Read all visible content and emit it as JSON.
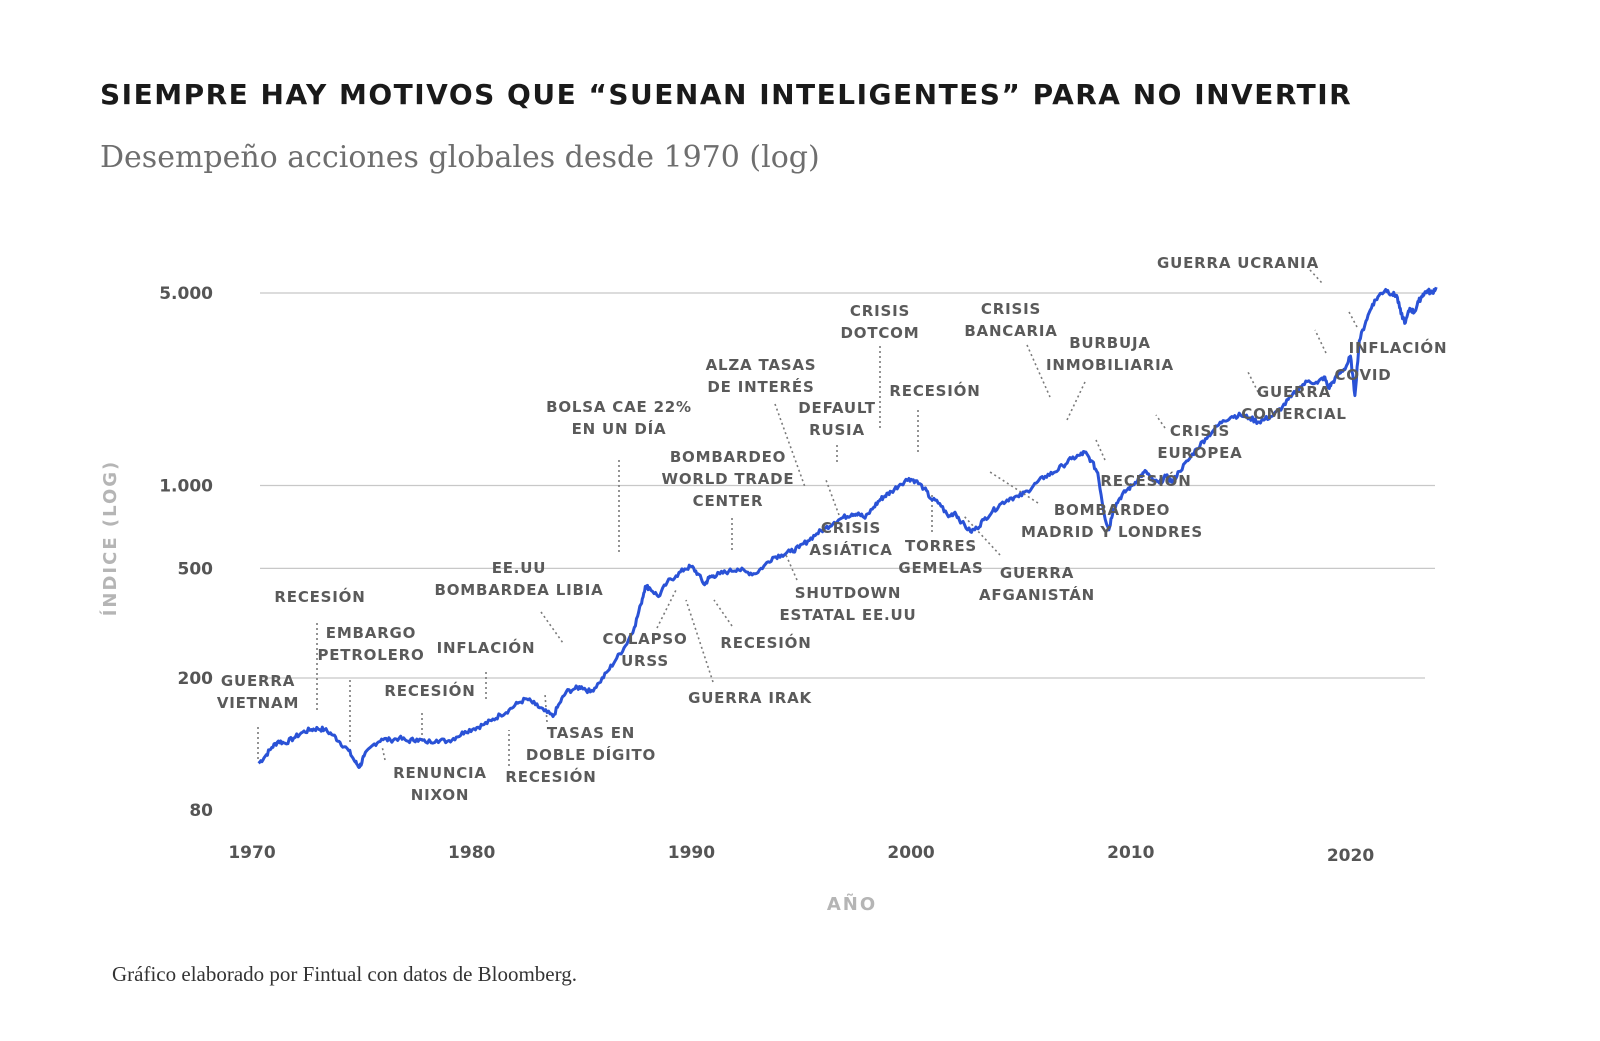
{
  "title": "SIEMPRE HAY MOTIVOS QUE “SUENAN INTELIGENTES” PARA NO INVERTIR",
  "subtitle": "Desempeño acciones globales desde 1970 (log)",
  "source": "Gráfico elaborado por Fintual con datos de Bloomberg.",
  "colors": {
    "line": "#2a52d6",
    "grid": "#c8c8c8",
    "text": "#555555"
  },
  "chart_data": {
    "type": "line",
    "title": "Desempeño acciones globales desde 1970 (log)",
    "xlabel": "AÑO",
    "ylabel": "ÍNDICE (LOG)",
    "yscale": "log",
    "ylim": [
      80,
      5500
    ],
    "xlim": [
      1970,
      2024
    ],
    "grid": true,
    "yticks": [
      {
        "value": 80,
        "label": "80"
      },
      {
        "value": 200,
        "label": "200"
      },
      {
        "value": 500,
        "label": "500"
      },
      {
        "value": 1000,
        "label": "1.000"
      },
      {
        "value": 5000,
        "label": "5.000"
      }
    ],
    "xticks": [
      {
        "value": 1970,
        "label": "1970"
      },
      {
        "value": 1980,
        "label": "1980"
      },
      {
        "value": 1990,
        "label": "1990"
      },
      {
        "value": 2000,
        "label": "2000"
      },
      {
        "value": 2010,
        "label": "2010"
      },
      {
        "value": 2020,
        "label": "2020"
      }
    ],
    "series": [
      {
        "x": [
          1970.3,
          1970.6,
          1970.9,
          1971.2,
          1971.5,
          1971.9,
          1972.3,
          1972.7,
          1973.0,
          1973.3,
          1973.7,
          1974.0,
          1974.4,
          1974.7,
          1974.9,
          1975.1,
          1975.5,
          1975.9,
          1976.3,
          1976.7,
          1977.1,
          1977.5,
          1977.9,
          1978.4,
          1978.9,
          1979.3,
          1979.7,
          1980.1,
          1980.5,
          1980.9,
          1981.3,
          1981.7,
          1982.1,
          1982.5,
          1982.9,
          1983.3,
          1983.7,
          1984.0,
          1984.3,
          1984.7,
          1985.0,
          1985.4,
          1985.8,
          1986.2,
          1986.6,
          1987.0,
          1987.4,
          1987.7,
          1987.9,
          1988.1,
          1988.5,
          1988.9,
          1989.3,
          1989.7,
          1990.0,
          1990.3,
          1990.6,
          1990.8,
          1991.0,
          1991.3,
          1991.7,
          1992.1,
          1992.5,
          1992.9,
          1993.3,
          1993.7,
          1994.1,
          1994.5,
          1994.9,
          1995.3,
          1995.7,
          1996.1,
          1996.5,
          1996.9,
          1997.3,
          1997.6,
          1997.9,
          1998.3,
          1998.6,
          1998.8,
          1999.1,
          1999.5,
          1999.9,
          2000.2,
          2000.6,
          2000.9,
          2001.3,
          2001.7,
          2002.0,
          2002.3,
          2002.7,
          2003.0,
          2003.3,
          2003.7,
          2004.1,
          2004.5,
          2004.9,
          2005.3,
          2005.7,
          2006.1,
          2006.5,
          2006.9,
          2007.3,
          2007.7,
          2007.9,
          2008.2,
          2008.5,
          2008.8,
          2009.0,
          2009.2,
          2009.5,
          2009.8,
          2010.1,
          2010.4,
          2010.7,
          2011.0,
          2011.3,
          2011.6,
          2011.9,
          2012.2,
          2012.6,
          2013.0,
          2013.4,
          2013.8,
          2014.2,
          2014.6,
          2015.0,
          2015.4,
          2015.8,
          2016.1,
          2016.5,
          2016.9,
          2017.3,
          2017.7,
          2018.1,
          2018.5,
          2018.8,
          2019.0,
          2019.2,
          2019.5,
          2019.8,
          2020.0,
          2020.2,
          2020.4,
          2020.7,
          2021.0,
          2021.3,
          2021.6,
          2021.9,
          2022.1,
          2022.3,
          2022.5,
          2022.7,
          2022.9,
          2023.1,
          2023.3,
          2023.5,
          2023.7,
          2023.9
        ],
        "values": [
          98,
          104,
          112,
          118,
          116,
          121,
          127,
          130,
          131,
          130,
          124,
          117,
          109,
          99,
          95,
          104,
          114,
          120,
          119,
          121,
          118,
          120,
          117,
          119,
          118,
          122,
          128,
          131,
          135,
          140,
          147,
          153,
          162,
          168,
          160,
          152,
          145,
          162,
          178,
          183,
          186,
          178,
          192,
          212,
          236,
          262,
          305,
          370,
          430,
          425,
          395,
          445,
          470,
          498,
          508,
          478,
          436,
          462,
          470,
          478,
          488,
          498,
          485,
          478,
          510,
          548,
          560,
          575,
          595,
          630,
          668,
          700,
          735,
          765,
          788,
          795,
          760,
          835,
          890,
          915,
          950,
          1010,
          1060,
          1040,
          975,
          895,
          860,
          770,
          800,
          735,
          680,
          700,
          750,
          805,
          860,
          900,
          910,
          955,
          1020,
          1080,
          1115,
          1180,
          1250,
          1290,
          1320,
          1230,
          1110,
          780,
          690,
          820,
          900,
          960,
          1005,
          1075,
          1125,
          1040,
          1020,
          1080,
          1030,
          1125,
          1230,
          1360,
          1480,
          1600,
          1720,
          1780,
          1800,
          1760,
          1700,
          1740,
          1800,
          1930,
          2100,
          2280,
          2400,
          2350,
          2480,
          2260,
          2380,
          2550,
          2700,
          2950,
          2120,
          3350,
          3950,
          4550,
          4900,
          5150,
          4950,
          4900,
          4200,
          3900,
          4400,
          4250,
          4650,
          4950,
          5100,
          5000,
          5250
        ]
      }
    ],
    "annotations": [
      {
        "lines": [
          "GUERRA",
          "VIETNAM"
        ],
        "x": 1970.3
      },
      {
        "lines": [
          "RECESIÓN"
        ],
        "x": 1973.5
      },
      {
        "lines": [
          "EMBARGO",
          "PETROLERO"
        ],
        "x": 1974.6
      },
      {
        "lines": [
          "RENUNCIA",
          "NIXON"
        ],
        "x": 1976.2
      },
      {
        "lines": [
          "RECESIÓN"
        ],
        "x": 1979.4
      },
      {
        "lines": [
          "INFLACIÓN"
        ],
        "x": 1981.8
      },
      {
        "lines": [
          "TASAS EN",
          "DOBLE DÍGITO"
        ],
        "x": 1984.5
      },
      {
        "lines": [
          "RECESIÓN"
        ],
        "x": 1982.9
      },
      {
        "lines": [
          "EE.UU",
          "BOMBARDEA LIBIA"
        ],
        "x": 1986.4
      },
      {
        "lines": [
          "BOLSA CAE 22%",
          "EN UN DÍA"
        ],
        "x": 1987.8
      },
      {
        "lines": [
          "COLAPSO",
          "URSS"
        ],
        "x": 1990.9
      },
      {
        "lines": [
          "GUERRA IRAK"
        ],
        "x": 1990.6
      },
      {
        "lines": [
          "RECESIÓN"
        ],
        "x": 1991.9
      },
      {
        "lines": [
          "BOMBARDEO",
          "WORLD TRADE",
          "CENTER"
        ],
        "x": 1993.2
      },
      {
        "lines": [
          "SHUTDOWN",
          "ESTATAL EE.UU"
        ],
        "x": 1995.8
      },
      {
        "lines": [
          "ALZA TASAS",
          "DE INTERÉS"
        ],
        "x": 1996.6
      },
      {
        "lines": [
          "CRISIS",
          "ASIÁTICA"
        ],
        "x": 1997.6
      },
      {
        "lines": [
          "DEFAULT",
          "RUSIA"
        ],
        "x": 1998.3
      },
      {
        "lines": [
          "CRISIS",
          "DOTCOM"
        ],
        "x": 2000.0
      },
      {
        "lines": [
          "RECESIÓN"
        ],
        "x": 2001.2
      },
      {
        "lines": [
          "TORRES",
          "GEMELAS"
        ],
        "x": 2001.8
      },
      {
        "lines": [
          "GUERRA",
          "AFGANISTÁN"
        ],
        "x": 2003.2
      },
      {
        "lines": [
          "BOMBARDEO",
          "MADRID Y LONDRES"
        ],
        "x": 2004.7
      },
      {
        "lines": [
          "CRISIS",
          "BANCARIA"
        ],
        "x": 2006.9
      },
      {
        "lines": [
          "BURBUJA",
          "INMOBILIARIA"
        ],
        "x": 2008.3
      },
      {
        "lines": [
          "RECESIÓN"
        ],
        "x": 2009.3
      },
      {
        "lines": [
          "CRISIS",
          "EUROPEA"
        ],
        "x": 2011.9
      },
      {
        "lines": [
          "GUERRA",
          "COMERCIAL"
        ],
        "x": 2015.9
      },
      {
        "lines": [
          "COVID"
        ],
        "x": 2020.1
      },
      {
        "lines": [
          "GUERRA UCRANIA"
        ],
        "x": 2019.9
      },
      {
        "lines": [
          "INFLACIÓN"
        ],
        "x": 2021.8
      }
    ]
  }
}
